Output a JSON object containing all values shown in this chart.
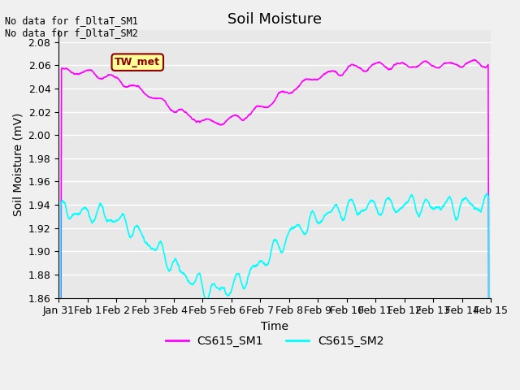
{
  "title": "Soil Moisture",
  "xlabel": "Time",
  "ylabel": "Soil Moisture (mV)",
  "ylim": [
    1.86,
    2.09
  ],
  "xlim": [
    0,
    15
  ],
  "xtick_labels": [
    "Jan 31",
    "Feb 1",
    "Feb 2",
    "Feb 3",
    "Feb 4",
    "Feb 5",
    "Feb 6",
    "Feb 7",
    "Feb 8",
    "Feb 9",
    "Feb 10",
    "Feb 11",
    "Feb 12",
    "Feb 13",
    "Feb 14",
    "Feb 15"
  ],
  "ytick_values": [
    1.86,
    1.88,
    1.9,
    1.92,
    1.94,
    1.96,
    1.98,
    2.0,
    2.02,
    2.04,
    2.06,
    2.08
  ],
  "color_sm1": "#FF00FF",
  "color_sm2": "#00FFFF",
  "bg_color": "#E8E8E8",
  "annotation_text": "No data for f_DltaT_SM1\nNo data for f_DltaT_SM2",
  "tw_met_label": "TW_met",
  "tw_met_bg": "#FFFF99",
  "tw_met_border": "#8B0000",
  "legend_labels": [
    "CS615_SM1",
    "CS615_SM2"
  ],
  "title_fontsize": 13,
  "label_fontsize": 10,
  "tick_fontsize": 9
}
